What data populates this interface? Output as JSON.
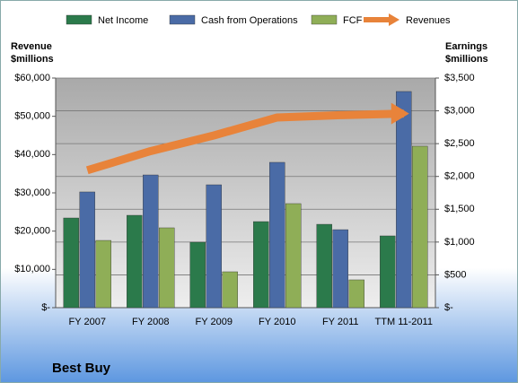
{
  "chart_data": {
    "type": "bar",
    "title": "Best Buy",
    "y_label": [
      "Revenue",
      "$millions"
    ],
    "y2_label": [
      "Earnings",
      "$millions"
    ],
    "categories": [
      "FY 2007",
      "FY 2008",
      "FY 2009",
      "FY 2010",
      "FY 2011",
      "TTM 11-2011"
    ],
    "series": [
      {
        "name": "Net Income",
        "color": "#2b7a4b",
        "axis": "y2",
        "type": "bar",
        "values": [
          1367,
          1408,
          998,
          1312,
          1271,
          1094
        ]
      },
      {
        "name": "Cash from Operations",
        "color": "#4a6ba6",
        "axis": "y2",
        "type": "bar",
        "values": [
          1764,
          2023,
          1873,
          2215,
          1189,
          3295
        ]
      },
      {
        "name": "FCF",
        "color": "#8fae57",
        "axis": "y2",
        "type": "bar",
        "values": [
          1025,
          1217,
          547,
          1586,
          424,
          2461
        ]
      },
      {
        "name": "Revenues",
        "color": "#e8833a",
        "axis": "y",
        "type": "line",
        "values": [
          35900,
          40900,
          45000,
          49700,
          50300,
          50700
        ]
      }
    ],
    "ylim": [
      0,
      60000
    ],
    "yticks": [
      {
        "value": 0,
        "label": "$-"
      },
      {
        "value": 10000,
        "label": "$10,000"
      },
      {
        "value": 20000,
        "label": "$20,000"
      },
      {
        "value": 30000,
        "label": "$30,000"
      },
      {
        "value": 40000,
        "label": "$40,000"
      },
      {
        "value": 50000,
        "label": "$50,000"
      },
      {
        "value": 60000,
        "label": "$60,000"
      }
    ],
    "y2lim": [
      0,
      3500
    ],
    "y2ticks": [
      {
        "value": 0,
        "label": "$-"
      },
      {
        "value": 500,
        "label": "$500"
      },
      {
        "value": 1000,
        "label": "$1,000"
      },
      {
        "value": 1500,
        "label": "$1,500"
      },
      {
        "value": 2000,
        "label": "$2,000"
      },
      {
        "value": 2500,
        "label": "$2,500"
      },
      {
        "value": 3000,
        "label": "$3,000"
      },
      {
        "value": 3500,
        "label": "$3,500"
      }
    ],
    "grid": true
  }
}
